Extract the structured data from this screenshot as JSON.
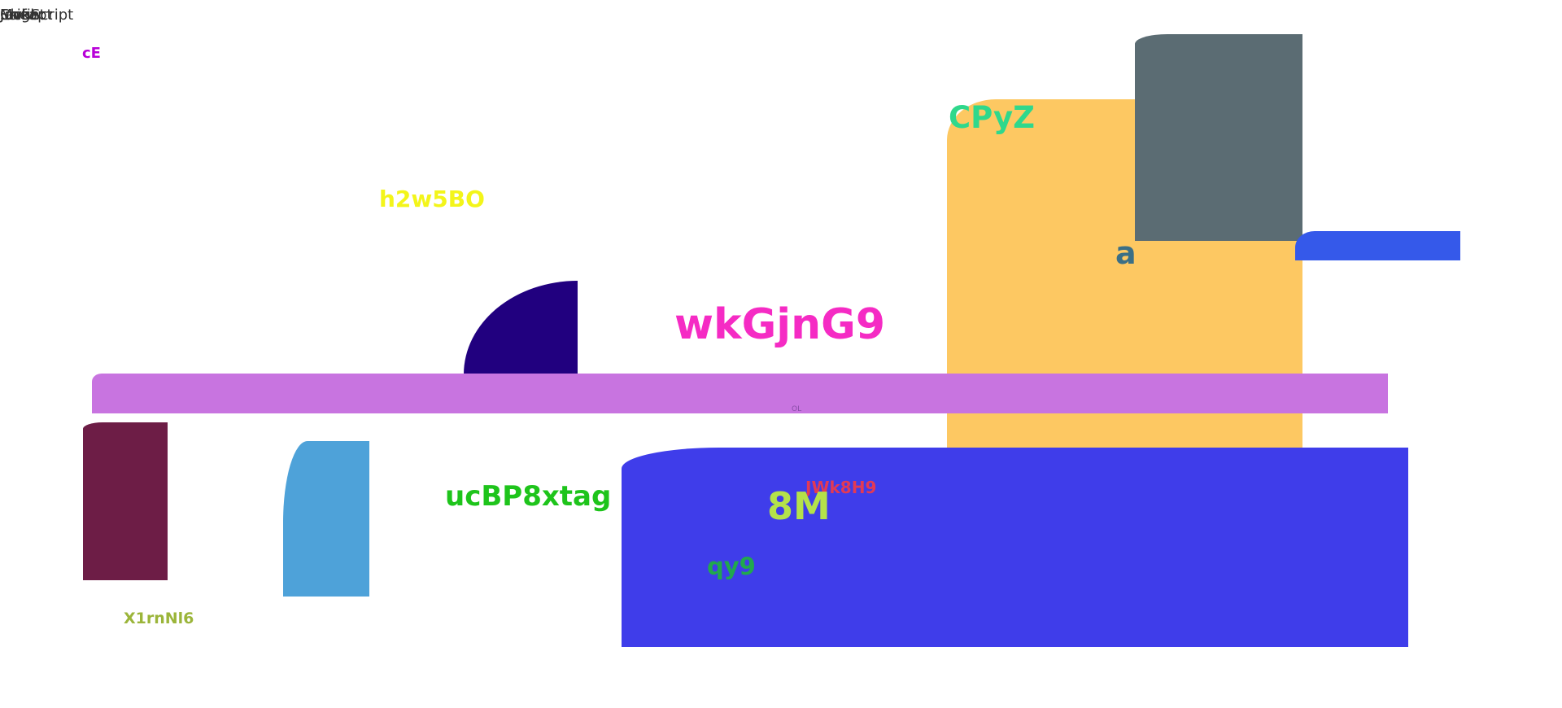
{
  "colors": {
    "background": "#ffffff",
    "orange_block": "#fdc862",
    "slate_block": "#5b6c73",
    "blue_tab": "#3559ea",
    "navy_quarter": "#21007f",
    "violet_bar": "#c874e0",
    "maroon_block": "#6d1d46",
    "sky_block": "#4ea2d9",
    "indigo_block": "#3f3dea"
  },
  "corner_text": [
    "Ssight",
    "Mofit",
    "Cheapt",
    "Jocke",
    "JavaScript"
  ],
  "labels": {
    "ce": {
      "text": "cE",
      "color": "#b800d8"
    },
    "cpyz": {
      "text": "CPyZ",
      "color": "#2fd88c"
    },
    "h2w5bo": {
      "text": "h2w5BO",
      "color": "#f3f51a"
    },
    "a": {
      "text": "a",
      "color": "#3b6f86"
    },
    "wkgjng9": {
      "text": "wkGjnG9",
      "color": "#f52bc4"
    },
    "ol": {
      "text": "OL",
      "color": "#8a4ea8"
    },
    "ucbp8xtag": {
      "text": "ucBP8xtag",
      "color": "#1ec41b"
    },
    "jwk8h9": {
      "text": "JWk8H9",
      "color": "#e23a55"
    },
    "eight_m": {
      "text": "8M",
      "color": "#b4e24a"
    },
    "qy9": {
      "text": "qy9",
      "color": "#21a84e"
    },
    "x1rnnl6": {
      "text": "X1rnNl6",
      "color": "#9bb53a"
    }
  }
}
